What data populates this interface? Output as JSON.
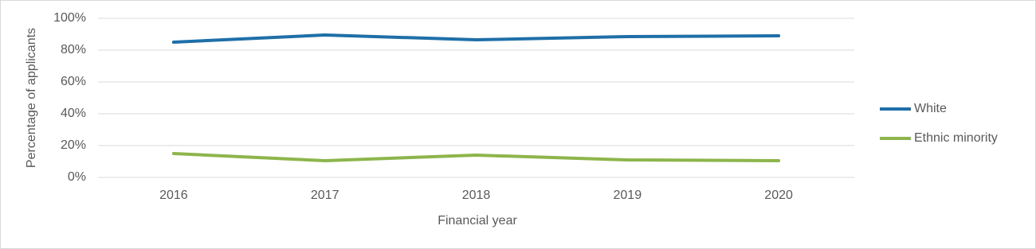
{
  "chart_data": {
    "type": "line",
    "x_label": "Financial year",
    "y_label": "Percentage of applicants",
    "categories": [
      "2016",
      "2017",
      "2018",
      "2019",
      "2020"
    ],
    "series": [
      {
        "name": "White",
        "color": "#1f6fa8",
        "values": [
          85,
          89.5,
          86.5,
          88.5,
          89
        ]
      },
      {
        "name": "Ethnic minority",
        "color": "#8db54b",
        "values": [
          15,
          10.5,
          14,
          11,
          10.5
        ]
      }
    ],
    "ylim": [
      0,
      100
    ],
    "yticks": [
      {
        "value": 0,
        "label": "0%"
      },
      {
        "value": 20,
        "label": "20%"
      },
      {
        "value": 40,
        "label": "40%"
      },
      {
        "value": 60,
        "label": "60%"
      },
      {
        "value": 80,
        "label": "80%"
      },
      {
        "value": 100,
        "label": "100%"
      }
    ],
    "grid": true,
    "legend": "right"
  }
}
